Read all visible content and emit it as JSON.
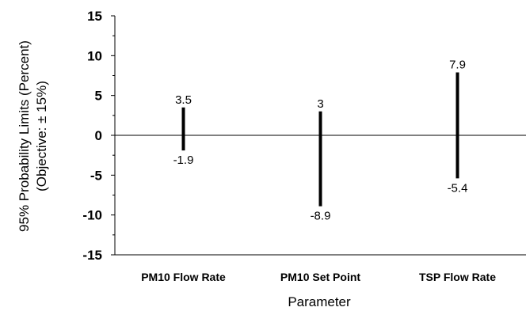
{
  "chart_data": {
    "type": "range",
    "title": "",
    "xlabel": "Parameter",
    "ylabel": [
      "95% Probability Limits (Percent)",
      "(Objective: ± 15%)"
    ],
    "ylim": [
      -15,
      15
    ],
    "yticks": [
      "-15",
      "-10",
      "-5",
      "0",
      "5",
      "10",
      "15"
    ],
    "categories": [
      "PM10 Flow Rate",
      "PM10 Set Point",
      "TSP Flow Rate"
    ],
    "upper": [
      3.5,
      3,
      7.9
    ],
    "lower": [
      -1.9,
      -8.9,
      -5.4
    ],
    "upper_labels": [
      "3.5",
      "3",
      "7.9"
    ],
    "lower_labels": [
      "-1.9",
      "-8.9",
      "-5.4"
    ],
    "zero_line": true,
    "grid": false,
    "legend": "none"
  }
}
